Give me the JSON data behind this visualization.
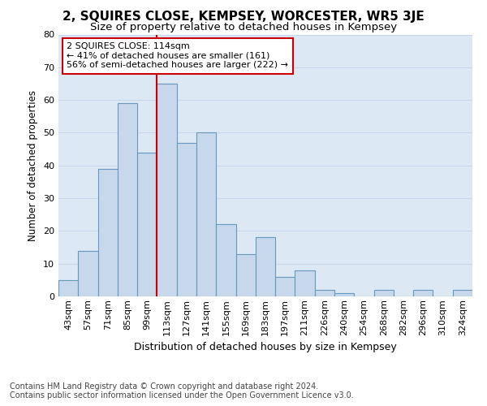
{
  "title": "2, SQUIRES CLOSE, KEMPSEY, WORCESTER, WR5 3JE",
  "subtitle": "Size of property relative to detached houses in Kempsey",
  "xlabel": "Distribution of detached houses by size in Kempsey",
  "ylabel": "Number of detached properties",
  "footer_line1": "Contains HM Land Registry data © Crown copyright and database right 2024.",
  "footer_line2": "Contains public sector information licensed under the Open Government Licence v3.0.",
  "bar_labels": [
    "43sqm",
    "57sqm",
    "71sqm",
    "85sqm",
    "99sqm",
    "113sqm",
    "127sqm",
    "141sqm",
    "155sqm",
    "169sqm",
    "183sqm",
    "197sqm",
    "211sqm",
    "226sqm",
    "240sqm",
    "254sqm",
    "268sqm",
    "282sqm",
    "296sqm",
    "310sqm",
    "324sqm"
  ],
  "bar_values": [
    5,
    14,
    39,
    59,
    44,
    65,
    47,
    50,
    22,
    13,
    18,
    6,
    8,
    2,
    1,
    0,
    2,
    0,
    2,
    0,
    2
  ],
  "bar_color": "#c8d8ec",
  "bar_edge_color": "#6699bb",
  "property_bin_index": 5,
  "vline_color": "#cc0000",
  "annotation_line1": "2 SQUIRES CLOSE: 114sqm",
  "annotation_line2": "← 41% of detached houses are smaller (161)",
  "annotation_line3": "56% of semi-detached houses are larger (222) →",
  "annotation_box_facecolor": "white",
  "annotation_box_edgecolor": "#cc0000",
  "ylim": [
    0,
    80
  ],
  "yticks": [
    0,
    10,
    20,
    30,
    40,
    50,
    60,
    70,
    80
  ],
  "grid_color": "#c8d8ec",
  "bg_color": "#dce8f4",
  "title_fontsize": 11,
  "subtitle_fontsize": 9.5,
  "xlabel_fontsize": 9,
  "ylabel_fontsize": 8.5,
  "tick_fontsize": 8,
  "footer_fontsize": 7,
  "annotation_fontsize": 8
}
